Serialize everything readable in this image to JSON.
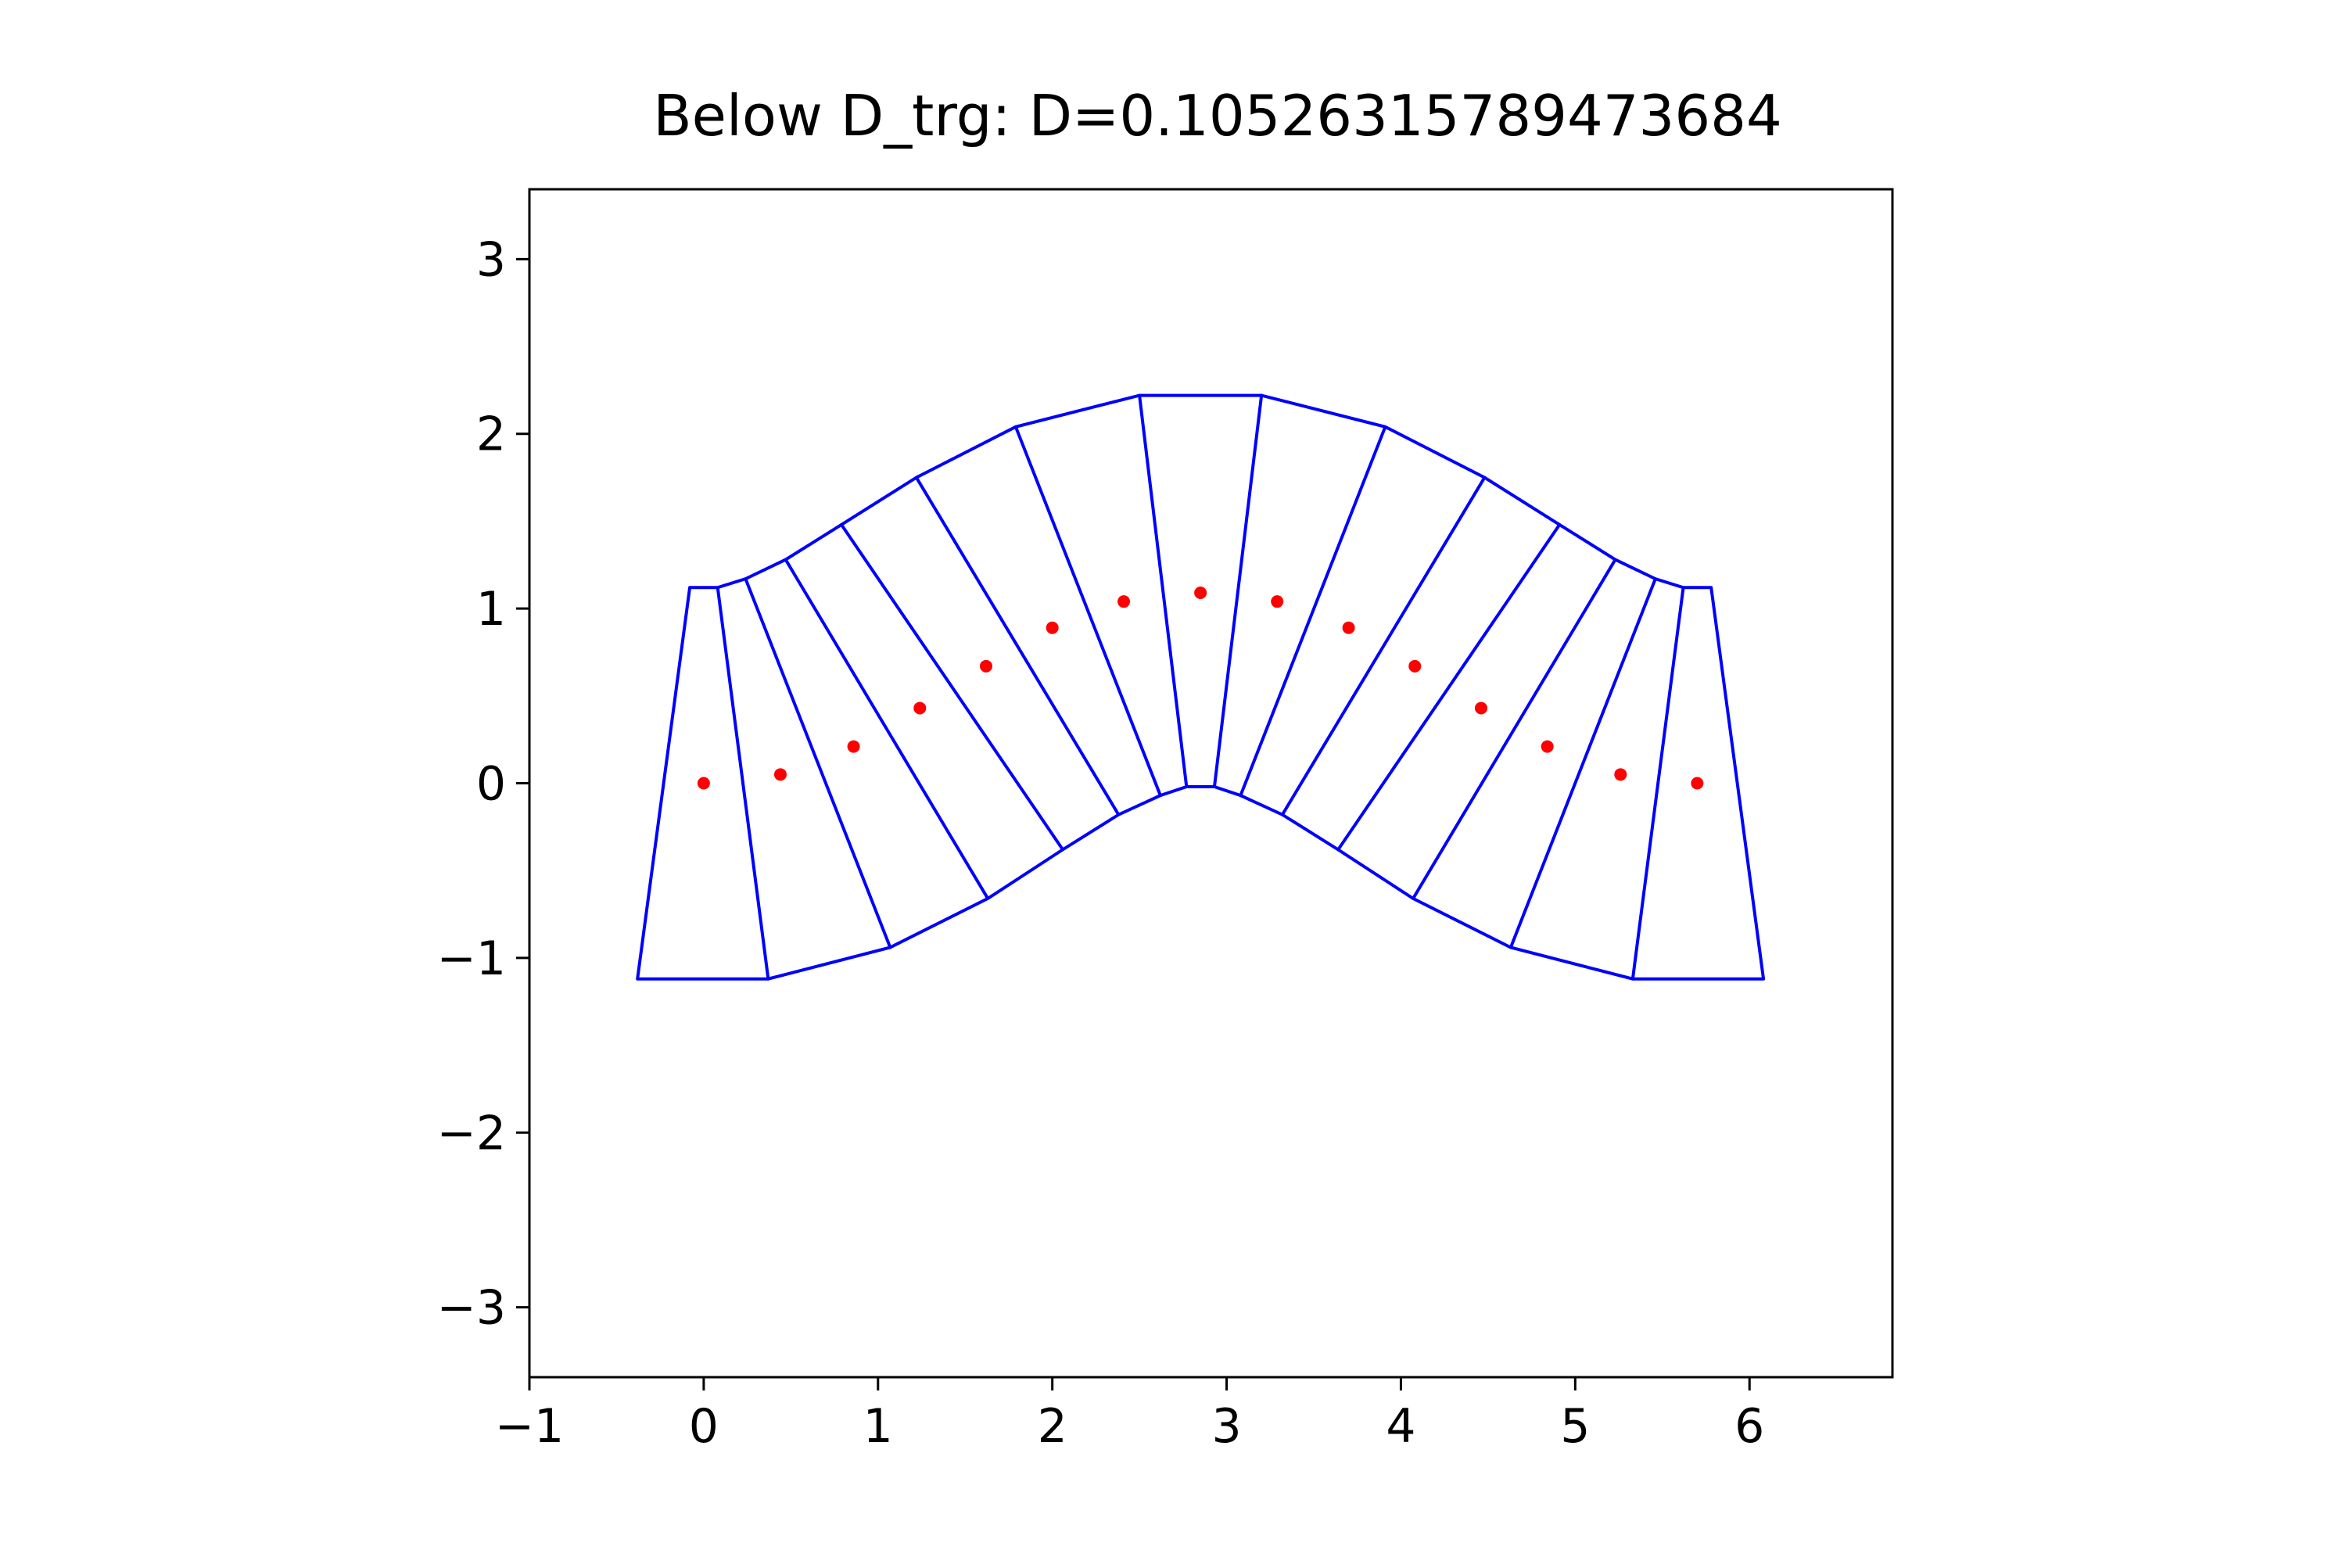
{
  "chart_data": {
    "type": "scatter",
    "title": "Below D_trg: D=0.10526315789473684",
    "xlabel": "",
    "ylabel": "",
    "xlim": [
      -1,
      6.82
    ],
    "ylim": [
      -3.4,
      3.4
    ],
    "x_ticks": [
      -1,
      0,
      1,
      2,
      3,
      4,
      5,
      6
    ],
    "x_tick_labels": [
      "−1",
      "0",
      "1",
      "2",
      "3",
      "4",
      "5",
      "6"
    ],
    "y_ticks": [
      -3,
      -2,
      -1,
      0,
      1,
      2,
      3
    ],
    "y_tick_labels": [
      "−3",
      "−2",
      "−1",
      "0",
      "1",
      "2",
      "3"
    ],
    "grid": false,
    "colors": {
      "polygon_edges": "#0000ff",
      "centers": "#ff0000",
      "frame": "#000000"
    },
    "centers": {
      "x": [
        0.0,
        0.44,
        0.86,
        1.24,
        1.62,
        2.0,
        2.41,
        2.85,
        3.29,
        3.7,
        4.08,
        4.46,
        4.84,
        5.26,
        5.7
      ],
      "y": [
        0.0,
        0.05,
        0.21,
        0.43,
        0.67,
        0.89,
        1.04,
        1.09,
        1.04,
        0.89,
        0.67,
        0.43,
        0.21,
        0.05,
        0.0
      ]
    },
    "outer_boundary": [
      [
        -0.08,
        1.12
      ],
      [
        0.08,
        1.12
      ],
      [
        0.24,
        1.17
      ],
      [
        0.47,
        1.28
      ],
      [
        0.79,
        1.48
      ],
      [
        1.22,
        1.75
      ],
      [
        1.79,
        2.04
      ],
      [
        2.5,
        2.22
      ],
      [
        3.2,
        2.22
      ],
      [
        3.91,
        2.04
      ],
      [
        4.48,
        1.75
      ],
      [
        4.91,
        1.48
      ],
      [
        5.23,
        1.28
      ],
      [
        5.46,
        1.17
      ],
      [
        5.62,
        1.12
      ],
      [
        5.78,
        1.12
      ]
    ],
    "inner_boundary": [
      [
        -0.38,
        -1.12
      ],
      [
        0.37,
        -1.12
      ],
      [
        1.07,
        -0.94
      ],
      [
        1.63,
        -0.66
      ],
      [
        2.06,
        -0.38
      ],
      [
        2.38,
        -0.18
      ],
      [
        2.62,
        -0.07
      ],
      [
        2.77,
        -0.02
      ],
      [
        2.93,
        -0.02
      ],
      [
        3.08,
        -0.07
      ],
      [
        3.32,
        -0.18
      ],
      [
        3.64,
        -0.38
      ],
      [
        4.07,
        -0.66
      ],
      [
        4.63,
        -0.94
      ],
      [
        5.33,
        -1.12
      ],
      [
        6.08,
        -1.12
      ]
    ]
  }
}
